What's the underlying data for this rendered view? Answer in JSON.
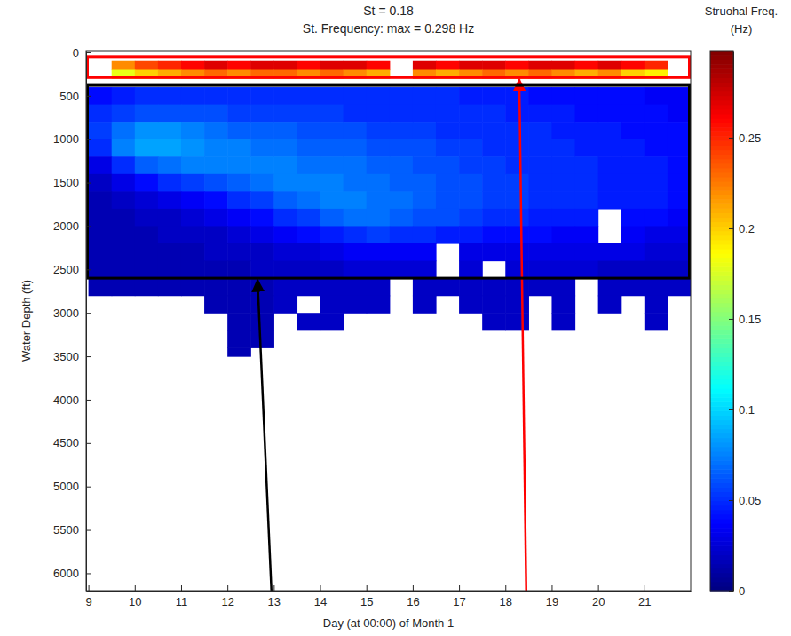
{
  "chart_data": {
    "type": "heatmap",
    "title": "St = 0.18",
    "subtitle": "St. Frequency: max = 0.298 Hz",
    "x_label": "Day (at 00:00) of Month 1",
    "y_label": "Water Depth (ft)",
    "xlim": [
      8.95,
      22
    ],
    "xticks": [
      9,
      10,
      11,
      12,
      13,
      14,
      15,
      16,
      17,
      18,
      19,
      20,
      21
    ],
    "ylim": [
      -20,
      6200
    ],
    "yticks": [
      0,
      500,
      1000,
      1500,
      2000,
      2500,
      3000,
      3500,
      4000,
      4500,
      5000,
      5500,
      6000
    ],
    "x_edges": [
      9,
      9.5,
      10,
      10.5,
      11,
      11.5,
      12,
      12.5,
      13,
      13.5,
      14,
      14.5,
      15,
      15.5,
      16,
      16.5,
      17,
      17.5,
      18,
      18.5,
      19,
      19.5,
      20,
      20.5,
      21,
      21.5,
      22
    ],
    "y_edges": [
      0,
      100,
      200,
      300,
      400,
      600,
      800,
      1000,
      1200,
      1400,
      1600,
      1800,
      2000,
      2200,
      2400,
      2600,
      2800,
      3000,
      3200,
      3400,
      3500
    ],
    "cells": [
      [
        null,
        null,
        null,
        null,
        null,
        null,
        null,
        null,
        null,
        null,
        null,
        null,
        null,
        null,
        null,
        null,
        null,
        null,
        null,
        null,
        null,
        null,
        null,
        null,
        null,
        null
      ],
      [
        null,
        0.22,
        0.24,
        0.25,
        0.26,
        0.27,
        0.26,
        0.27,
        0.27,
        0.26,
        0.27,
        0.27,
        0.26,
        null,
        0.27,
        0.26,
        0.27,
        0.27,
        0.26,
        0.27,
        0.27,
        0.26,
        0.27,
        0.26,
        0.25,
        null
      ],
      [
        null,
        0.18,
        0.2,
        0.21,
        0.22,
        0.23,
        0.22,
        0.23,
        0.23,
        0.22,
        0.23,
        0.22,
        0.21,
        null,
        0.22,
        0.21,
        0.22,
        0.23,
        0.22,
        0.23,
        0.22,
        0.21,
        0.22,
        0.2,
        0.19,
        null
      ],
      [
        null,
        null,
        null,
        null,
        null,
        null,
        null,
        null,
        null,
        null,
        null,
        null,
        null,
        null,
        null,
        null,
        null,
        null,
        null,
        null,
        null,
        null,
        null,
        null,
        null,
        null
      ],
      [
        0.04,
        0.045,
        0.05,
        0.05,
        0.05,
        0.05,
        0.05,
        0.05,
        0.05,
        0.05,
        0.05,
        0.05,
        0.05,
        0.05,
        0.05,
        0.05,
        0.045,
        0.045,
        0.045,
        0.04,
        0.04,
        0.04,
        0.04,
        0.04,
        0.035,
        0.035
      ],
      [
        0.05,
        0.055,
        0.06,
        0.06,
        0.06,
        0.06,
        0.055,
        0.055,
        0.055,
        0.055,
        0.055,
        0.05,
        0.05,
        0.05,
        0.05,
        0.05,
        0.05,
        0.05,
        0.045,
        0.045,
        0.045,
        0.04,
        0.04,
        0.04,
        0.04,
        0.035
      ],
      [
        0.055,
        0.07,
        0.08,
        0.08,
        0.075,
        0.07,
        0.065,
        0.065,
        0.065,
        0.06,
        0.06,
        0.06,
        0.055,
        0.055,
        0.055,
        0.05,
        0.05,
        0.05,
        0.05,
        0.05,
        0.045,
        0.045,
        0.045,
        0.04,
        0.04,
        0.04
      ],
      [
        0.05,
        0.075,
        0.085,
        0.085,
        0.08,
        0.075,
        0.075,
        0.07,
        0.07,
        0.065,
        0.065,
        0.065,
        0.06,
        0.06,
        0.06,
        0.055,
        0.055,
        0.05,
        0.05,
        0.05,
        0.05,
        0.045,
        0.045,
        0.045,
        0.04,
        0.04
      ],
      [
        0.03,
        0.05,
        0.065,
        0.07,
        0.075,
        0.075,
        0.075,
        0.075,
        0.075,
        0.07,
        0.07,
        0.07,
        0.065,
        0.065,
        0.06,
        0.06,
        0.055,
        0.055,
        0.05,
        0.05,
        0.05,
        0.05,
        0.045,
        0.045,
        0.045,
        0.04
      ],
      [
        0.02,
        0.03,
        0.04,
        0.05,
        0.055,
        0.06,
        0.065,
        0.07,
        0.075,
        0.075,
        0.075,
        0.07,
        0.07,
        0.065,
        0.065,
        0.06,
        0.06,
        0.055,
        0.055,
        0.05,
        0.05,
        0.05,
        0.045,
        0.045,
        0.045,
        0.04
      ],
      [
        0.015,
        0.02,
        0.025,
        0.03,
        0.035,
        0.04,
        0.05,
        0.055,
        0.065,
        0.07,
        0.075,
        0.075,
        0.07,
        0.07,
        0.065,
        0.06,
        0.06,
        0.055,
        0.055,
        0.05,
        0.05,
        0.05,
        0.045,
        0.045,
        0.045,
        0.04
      ],
      [
        0.015,
        0.015,
        0.02,
        0.02,
        0.025,
        0.03,
        0.035,
        0.04,
        0.05,
        0.055,
        0.065,
        0.07,
        0.07,
        0.065,
        0.06,
        0.06,
        0.055,
        0.05,
        0.05,
        0.045,
        0.045,
        0.045,
        null,
        0.04,
        0.04,
        0.035
      ],
      [
        0.015,
        0.015,
        0.015,
        0.02,
        0.02,
        0.02,
        0.025,
        0.03,
        0.035,
        0.04,
        0.045,
        0.05,
        0.055,
        0.05,
        0.05,
        0.045,
        0.045,
        0.04,
        0.04,
        0.04,
        0.035,
        0.035,
        null,
        0.035,
        0.03,
        0.03
      ],
      [
        0.015,
        0.015,
        0.015,
        0.015,
        0.015,
        0.02,
        0.02,
        0.02,
        0.025,
        0.025,
        0.03,
        0.035,
        0.035,
        0.035,
        0.035,
        null,
        0.03,
        0.03,
        0.03,
        0.03,
        0.03,
        0.03,
        0.03,
        0.03,
        0.025,
        0.025
      ],
      [
        0.015,
        0.015,
        0.015,
        0.015,
        0.015,
        0.015,
        0.015,
        0.02,
        0.02,
        0.02,
        0.02,
        0.025,
        0.025,
        0.025,
        0.025,
        null,
        0.025,
        null,
        0.025,
        0.025,
        0.025,
        0.025,
        0.02,
        0.02,
        0.02,
        0.02
      ],
      [
        0.015,
        0.015,
        0.015,
        0.015,
        0.015,
        0.015,
        0.015,
        0.015,
        0.02,
        0.02,
        0.02,
        0.02,
        0.02,
        null,
        0.02,
        0.02,
        0.02,
        0.02,
        0.02,
        0.02,
        0.02,
        null,
        0.02,
        0.02,
        0.02,
        0.02
      ],
      [
        null,
        null,
        null,
        null,
        null,
        0.015,
        0.015,
        0.015,
        0.02,
        null,
        0.02,
        0.02,
        0.02,
        null,
        0.02,
        null,
        0.02,
        0.02,
        0.02,
        null,
        0.02,
        null,
        0.02,
        null,
        0.02,
        null
      ],
      [
        null,
        null,
        null,
        null,
        null,
        null,
        0.015,
        0.015,
        null,
        0.02,
        0.02,
        null,
        null,
        null,
        null,
        null,
        null,
        0.02,
        0.02,
        null,
        0.02,
        null,
        null,
        null,
        0.02,
        null
      ],
      [
        null,
        null,
        null,
        null,
        null,
        null,
        0.015,
        0.015,
        null,
        null,
        null,
        null,
        null,
        null,
        null,
        null,
        null,
        null,
        null,
        null,
        null,
        null,
        null,
        null,
        null,
        null
      ],
      [
        null,
        null,
        null,
        null,
        null,
        null,
        0.015,
        null,
        null,
        null,
        null,
        null,
        null,
        null,
        null,
        null,
        null,
        null,
        null,
        null,
        null,
        null,
        null,
        null,
        null,
        null
      ]
    ],
    "colorbar": {
      "label": [
        "Struohal Freq.",
        "(Hz)"
      ],
      "range": [
        0,
        0.298
      ],
      "ticks": [
        0,
        0.05,
        0.1,
        0.15,
        0.2,
        0.25
      ]
    },
    "highlights": [
      {
        "color": "red",
        "x": [
          8.95,
          22
        ],
        "y": [
          50,
          290
        ],
        "arrow_x": [
          18.3,
          18.45
        ]
      },
      {
        "color": "black",
        "x": [
          8.95,
          22
        ],
        "y": [
          380,
          2600
        ],
        "arrow_x": [
          12.65,
          12.95
        ]
      }
    ]
  }
}
